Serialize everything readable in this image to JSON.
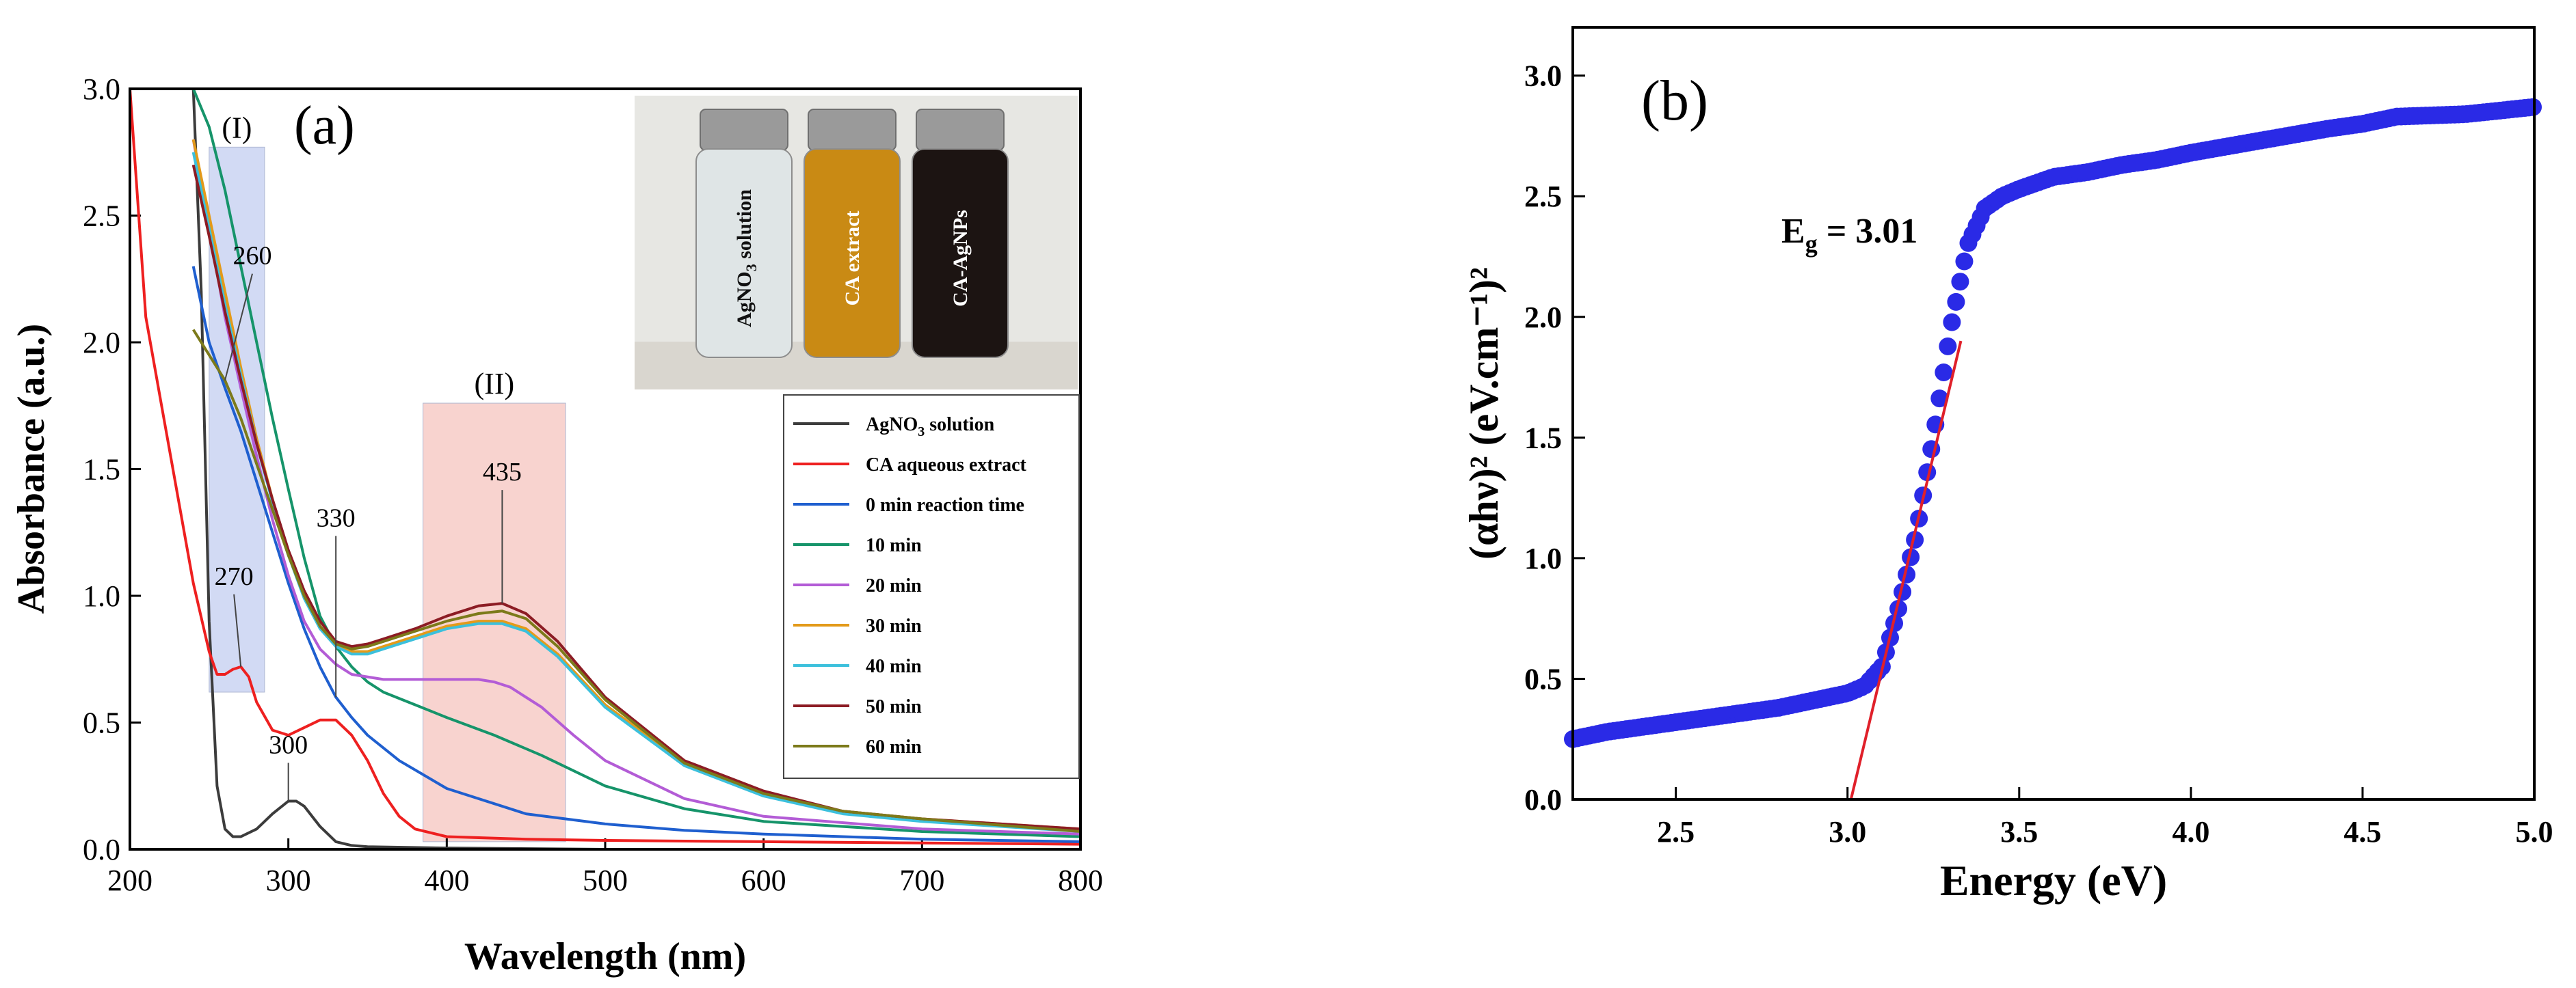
{
  "chart_data": [
    {
      "panel": "(a)",
      "type": "line",
      "xlabel": "Wavelength (nm)",
      "ylabel": "Absorbance (a.u.)",
      "xlim": [
        200,
        800
      ],
      "ylim": [
        0,
        3.0
      ],
      "xticks": [
        200,
        300,
        400,
        500,
        600,
        700,
        800
      ],
      "yticks": [
        0.0,
        0.5,
        1.0,
        1.5,
        2.0,
        2.5,
        3.0
      ],
      "legend_position": "right",
      "series": [
        {
          "name": "AgNO3 solution",
          "color": "#3c3c3c",
          "x": [
            220,
            240,
            245,
            250,
            255,
            260,
            265,
            270,
            280,
            290,
            300,
            305,
            310,
            320,
            330,
            340,
            350,
            400,
            500,
            600,
            700,
            800
          ],
          "y": [
            3.0,
            3.0,
            2.2,
            0.9,
            0.25,
            0.08,
            0.05,
            0.05,
            0.08,
            0.14,
            0.19,
            0.19,
            0.17,
            0.09,
            0.03,
            0.015,
            0.01,
            0.005,
            0.0,
            0.0,
            0.0,
            0.0
          ]
        },
        {
          "name": "CA aqueous extract",
          "color": "#ee2020",
          "x": [
            200,
            210,
            220,
            230,
            240,
            250,
            255,
            260,
            265,
            270,
            275,
            280,
            290,
            300,
            310,
            320,
            330,
            340,
            350,
            360,
            370,
            380,
            400,
            450,
            500,
            600,
            700,
            800
          ],
          "y": [
            3.0,
            2.1,
            1.75,
            1.4,
            1.05,
            0.78,
            0.69,
            0.69,
            0.71,
            0.72,
            0.68,
            0.58,
            0.47,
            0.45,
            0.48,
            0.51,
            0.51,
            0.45,
            0.35,
            0.22,
            0.13,
            0.08,
            0.05,
            0.04,
            0.035,
            0.03,
            0.025,
            0.02
          ]
        },
        {
          "name": "0 min reaction time",
          "color": "#1f5fcf",
          "x": [
            240,
            250,
            260,
            270,
            280,
            290,
            300,
            310,
            320,
            330,
            340,
            350,
            370,
            400,
            450,
            500,
            550,
            600,
            700,
            800
          ],
          "y": [
            2.3,
            2.0,
            1.82,
            1.65,
            1.45,
            1.25,
            1.05,
            0.87,
            0.72,
            0.6,
            0.52,
            0.45,
            0.35,
            0.24,
            0.14,
            0.1,
            0.075,
            0.06,
            0.04,
            0.03
          ]
        },
        {
          "name": "10 min",
          "color": "#16946a",
          "x": [
            240,
            250,
            260,
            270,
            280,
            290,
            300,
            310,
            320,
            330,
            340,
            350,
            360,
            380,
            400,
            430,
            460,
            500,
            550,
            600,
            700,
            800
          ],
          "y": [
            3.0,
            2.85,
            2.6,
            2.3,
            2.0,
            1.7,
            1.42,
            1.15,
            0.92,
            0.8,
            0.72,
            0.66,
            0.62,
            0.57,
            0.52,
            0.45,
            0.37,
            0.25,
            0.16,
            0.11,
            0.07,
            0.05
          ]
        },
        {
          "name": "20 min",
          "color": "#b35cd6",
          "x": [
            240,
            250,
            260,
            270,
            280,
            290,
            300,
            310,
            320,
            330,
            340,
            360,
            380,
            400,
            420,
            430,
            440,
            460,
            480,
            500,
            550,
            600,
            700,
            800
          ],
          "y": [
            2.8,
            2.45,
            2.1,
            1.82,
            1.55,
            1.3,
            1.08,
            0.9,
            0.79,
            0.73,
            0.69,
            0.67,
            0.67,
            0.67,
            0.67,
            0.66,
            0.64,
            0.56,
            0.45,
            0.35,
            0.2,
            0.13,
            0.08,
            0.06
          ]
        },
        {
          "name": "30 min",
          "color": "#e39a1a",
          "x": [
            240,
            250,
            260,
            270,
            280,
            290,
            300,
            310,
            320,
            330,
            340,
            350,
            360,
            380,
            400,
            420,
            435,
            450,
            470,
            500,
            550,
            600,
            650,
            700,
            800
          ],
          "y": [
            2.8,
            2.5,
            2.2,
            1.9,
            1.62,
            1.38,
            1.17,
            1.0,
            0.88,
            0.8,
            0.78,
            0.78,
            0.8,
            0.84,
            0.88,
            0.9,
            0.9,
            0.87,
            0.77,
            0.57,
            0.34,
            0.22,
            0.15,
            0.12,
            0.08
          ]
        },
        {
          "name": "40 min",
          "color": "#3cc0dc",
          "x": [
            240,
            250,
            260,
            270,
            280,
            290,
            300,
            310,
            320,
            330,
            340,
            350,
            360,
            380,
            400,
            420,
            435,
            450,
            470,
            500,
            550,
            600,
            650,
            700,
            800
          ],
          "y": [
            2.75,
            2.45,
            2.15,
            1.87,
            1.6,
            1.37,
            1.16,
            0.99,
            0.87,
            0.8,
            0.77,
            0.77,
            0.79,
            0.83,
            0.87,
            0.89,
            0.89,
            0.86,
            0.76,
            0.56,
            0.33,
            0.21,
            0.14,
            0.11,
            0.07
          ]
        },
        {
          "name": "50 min",
          "color": "#8c1c24",
          "x": [
            240,
            250,
            260,
            270,
            280,
            290,
            300,
            310,
            320,
            330,
            340,
            350,
            360,
            380,
            400,
            420,
            435,
            450,
            470,
            500,
            550,
            600,
            650,
            700,
            800
          ],
          "y": [
            2.7,
            2.42,
            2.12,
            1.85,
            1.6,
            1.38,
            1.18,
            1.02,
            0.9,
            0.82,
            0.8,
            0.81,
            0.83,
            0.87,
            0.92,
            0.96,
            0.97,
            0.93,
            0.82,
            0.6,
            0.35,
            0.23,
            0.15,
            0.12,
            0.08
          ]
        },
        {
          "name": "60 min",
          "color": "#7c7a1a",
          "x": [
            240,
            250,
            260,
            270,
            280,
            290,
            300,
            310,
            320,
            330,
            340,
            350,
            360,
            380,
            400,
            420,
            435,
            450,
            470,
            500,
            550,
            600,
            650,
            700,
            800
          ],
          "y": [
            2.05,
            1.95,
            1.85,
            1.7,
            1.52,
            1.34,
            1.16,
            1.0,
            0.88,
            0.81,
            0.79,
            0.8,
            0.82,
            0.86,
            0.9,
            0.93,
            0.94,
            0.91,
            0.8,
            0.59,
            0.34,
            0.22,
            0.15,
            0.12,
            0.07
          ]
        }
      ],
      "annotations": [
        {
          "text": "260",
          "x": 260,
          "y": 1.85
        },
        {
          "text": "270",
          "x": 270,
          "y": 0.72
        },
        {
          "text": "300",
          "x": 300,
          "y": 0.19
        },
        {
          "text": "330",
          "x": 330,
          "y": 0.6
        },
        {
          "text": "435",
          "x": 435,
          "y": 0.97
        }
      ],
      "regions": [
        {
          "label": "(I)",
          "x": [
            250,
            285
          ],
          "y": [
            0.62,
            2.77
          ],
          "color": "#c7d2f2"
        },
        {
          "label": "(II)",
          "x": [
            385,
            475
          ],
          "y": [
            0.03,
            1.76
          ],
          "color": "#f7c9c4"
        }
      ],
      "inset": {
        "description": "photo of three vials",
        "vials": [
          {
            "label": "AgNO3 solution",
            "liquid_color": "#dfe5e6"
          },
          {
            "label": "CA extract",
            "liquid_color": "#c98a14"
          },
          {
            "label": "CA-AgNPs",
            "liquid_color": "#1c1412"
          }
        ]
      }
    },
    {
      "panel": "(b)",
      "type": "scatter",
      "xlabel": "Energy (eV)",
      "ylabel": "(αhν)² (eV.cm⁻¹)²",
      "xlim": [
        2.2,
        5.0
      ],
      "ylim": [
        0,
        3.2
      ],
      "xticks": [
        2.5,
        3.0,
        3.5,
        4.0,
        4.5,
        5.0
      ],
      "yticks": [
        0.0,
        0.5,
        1.0,
        1.5,
        2.0,
        2.5,
        3.0
      ],
      "marker_color": "#2a2ae6",
      "fit_line_color": "#e0202a",
      "eg_label": "3.01",
      "x": [
        2.2,
        2.3,
        2.4,
        2.5,
        2.6,
        2.7,
        2.8,
        2.9,
        3.0,
        3.05,
        3.1,
        3.15,
        3.2,
        3.25,
        3.3,
        3.35,
        3.4,
        3.45,
        3.5,
        3.6,
        3.7,
        3.8,
        3.9,
        4.0,
        4.2,
        4.4,
        4.5,
        4.6,
        4.8,
        5.0
      ],
      "y": [
        0.25,
        0.28,
        0.3,
        0.32,
        0.34,
        0.36,
        0.38,
        0.41,
        0.44,
        0.47,
        0.55,
        0.8,
        1.1,
        1.5,
        1.95,
        2.3,
        2.45,
        2.5,
        2.53,
        2.58,
        2.6,
        2.63,
        2.65,
        2.68,
        2.73,
        2.78,
        2.8,
        2.83,
        2.84,
        2.87
      ],
      "fit_line": {
        "x": [
          3.01,
          3.33
        ],
        "y": [
          0.0,
          1.9
        ]
      }
    }
  ]
}
